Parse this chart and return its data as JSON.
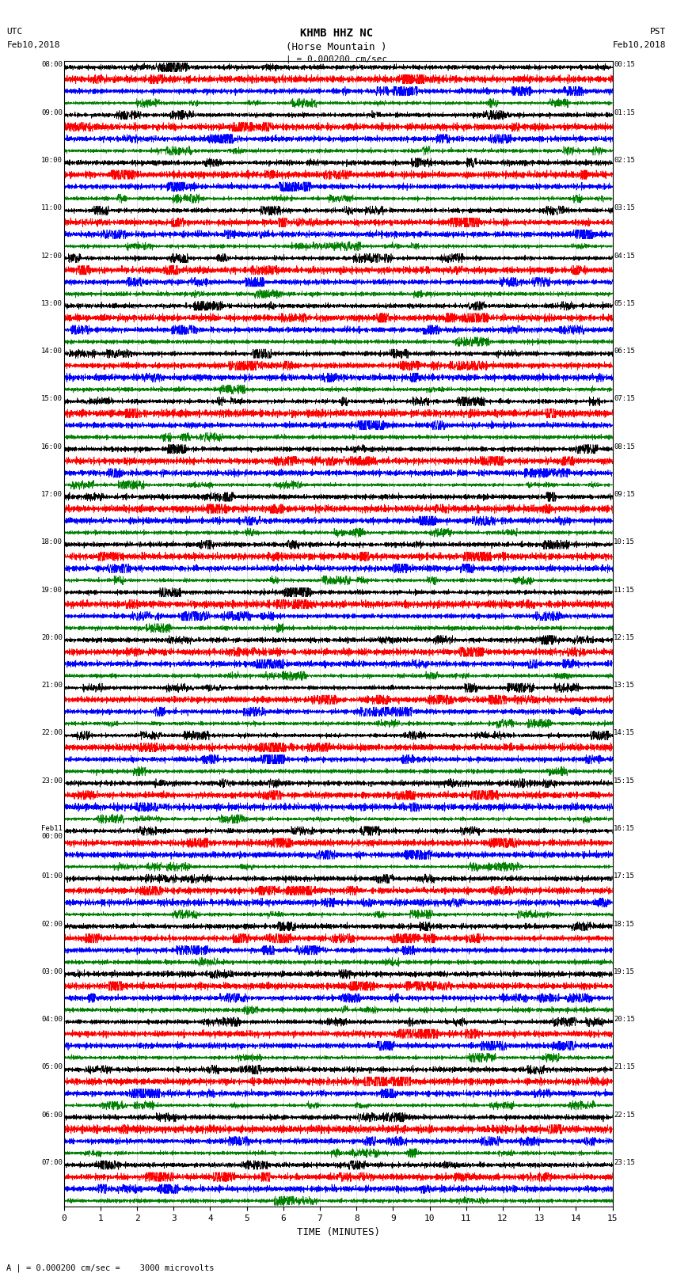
{
  "title_line1": "KHMB HHZ NC",
  "title_line2": "(Horse Mountain )",
  "scale_label": "| = 0.000200 cm/sec",
  "bottom_label": "A | = 0.000200 cm/sec =    3000 microvolts",
  "xlabel": "TIME (MINUTES)",
  "trace_colors": [
    "black",
    "red",
    "blue",
    "green"
  ],
  "n_rows": 24,
  "traces_per_row": 4,
  "left_times": [
    "08:00",
    "09:00",
    "10:00",
    "11:00",
    "12:00",
    "13:00",
    "14:00",
    "15:00",
    "16:00",
    "17:00",
    "18:00",
    "19:00",
    "20:00",
    "21:00",
    "22:00",
    "23:00",
    "Feb11\n00:00",
    "01:00",
    "02:00",
    "03:00",
    "04:00",
    "05:00",
    "06:00",
    "07:00"
  ],
  "right_times": [
    "00:15",
    "01:15",
    "02:15",
    "03:15",
    "04:15",
    "05:15",
    "06:15",
    "07:15",
    "08:15",
    "09:15",
    "10:15",
    "11:15",
    "12:15",
    "13:15",
    "14:15",
    "15:15",
    "16:15",
    "17:15",
    "18:15",
    "19:15",
    "20:15",
    "21:15",
    "22:15",
    "23:15"
  ],
  "xlim": [
    0,
    15
  ],
  "xticks": [
    0,
    1,
    2,
    3,
    4,
    5,
    6,
    7,
    8,
    9,
    10,
    11,
    12,
    13,
    14,
    15
  ],
  "bg_color": "white",
  "trace_amplitude": 0.38,
  "seed": 12345,
  "n_pts": 3000,
  "ar_coeff": 0.7,
  "high_freq_weight": 3.0
}
